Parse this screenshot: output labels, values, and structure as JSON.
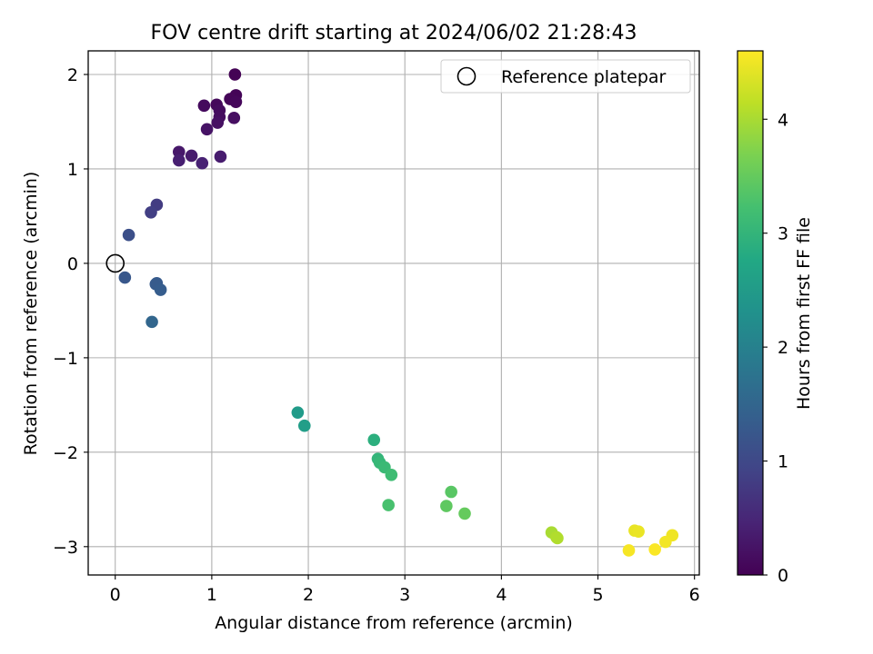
{
  "chart_data": {
    "type": "scatter",
    "title": "FOV centre drift starting at 2024/06/02 21:28:43",
    "xlabel": "Angular distance from reference (arcmin)",
    "ylabel": "Rotation from reference (arcmin)",
    "xlim": [
      -0.28,
      6.05
    ],
    "ylim": [
      -3.3,
      2.25
    ],
    "xticks": [
      0,
      1,
      2,
      3,
      4,
      5,
      6
    ],
    "xtick_labels": [
      "0",
      "1",
      "2",
      "3",
      "4",
      "5",
      "6"
    ],
    "yticks": [
      -3,
      -2,
      -1,
      0,
      1,
      2
    ],
    "ytick_labels": [
      "−3",
      "−2",
      "−1",
      "0",
      "1",
      "2"
    ],
    "grid": true,
    "colormap": "viridis",
    "colorbar": {
      "label": "Hours from first FF file",
      "min": 0,
      "max": 4.6,
      "ticks": [
        0,
        1,
        2,
        3,
        4
      ],
      "tick_labels": [
        "0",
        "1",
        "2",
        "3",
        "4"
      ]
    },
    "legend": {
      "placement": "top-right",
      "entries": [
        {
          "label": "Reference platepar",
          "marker": "open-circle"
        }
      ]
    },
    "reference_point": {
      "x": 0,
      "y": 0
    },
    "series": [
      {
        "points": [
          {
            "x": 1.24,
            "y": 2.0,
            "c": 0.02
          },
          {
            "x": 1.25,
            "y": 1.78,
            "c": 0.04
          },
          {
            "x": 1.19,
            "y": 1.74,
            "c": 0.06
          },
          {
            "x": 1.25,
            "y": 1.71,
            "c": 0.08
          },
          {
            "x": 1.05,
            "y": 1.68,
            "c": 0.1
          },
          {
            "x": 0.92,
            "y": 1.67,
            "c": 0.12
          },
          {
            "x": 1.08,
            "y": 1.62,
            "c": 0.14
          },
          {
            "x": 1.08,
            "y": 1.55,
            "c": 0.16
          },
          {
            "x": 1.23,
            "y": 1.54,
            "c": 0.18
          },
          {
            "x": 1.06,
            "y": 1.49,
            "c": 0.2
          },
          {
            "x": 0.95,
            "y": 1.42,
            "c": 0.24
          },
          {
            "x": 0.66,
            "y": 1.18,
            "c": 0.3
          },
          {
            "x": 0.79,
            "y": 1.14,
            "c": 0.34
          },
          {
            "x": 1.09,
            "y": 1.13,
            "c": 0.36
          },
          {
            "x": 0.66,
            "y": 1.09,
            "c": 0.4
          },
          {
            "x": 0.9,
            "y": 1.06,
            "c": 0.44
          },
          {
            "x": 0.43,
            "y": 0.62,
            "c": 0.8
          },
          {
            "x": 0.37,
            "y": 0.54,
            "c": 0.85
          },
          {
            "x": 0.14,
            "y": 0.3,
            "c": 1.1
          },
          {
            "x": 0.1,
            "y": -0.15,
            "c": 1.25
          },
          {
            "x": 0.43,
            "y": -0.21,
            "c": 1.3
          },
          {
            "x": 0.42,
            "y": -0.22,
            "c": 1.32
          },
          {
            "x": 0.47,
            "y": -0.28,
            "c": 1.35
          },
          {
            "x": 0.38,
            "y": -0.62,
            "c": 1.5
          },
          {
            "x": 1.89,
            "y": -1.58,
            "c": 2.5
          },
          {
            "x": 1.96,
            "y": -1.72,
            "c": 2.55
          },
          {
            "x": 2.68,
            "y": -1.87,
            "c": 2.9
          },
          {
            "x": 2.72,
            "y": -2.07,
            "c": 3.0
          },
          {
            "x": 2.74,
            "y": -2.11,
            "c": 3.05
          },
          {
            "x": 2.79,
            "y": -2.16,
            "c": 3.1
          },
          {
            "x": 2.86,
            "y": -2.24,
            "c": 3.15
          },
          {
            "x": 2.83,
            "y": -2.56,
            "c": 3.25
          },
          {
            "x": 3.48,
            "y": -2.42,
            "c": 3.4
          },
          {
            "x": 3.43,
            "y": -2.57,
            "c": 3.45
          },
          {
            "x": 3.62,
            "y": -2.65,
            "c": 3.5
          },
          {
            "x": 4.52,
            "y": -2.85,
            "c": 4.0
          },
          {
            "x": 4.57,
            "y": -2.9,
            "c": 4.05
          },
          {
            "x": 4.58,
            "y": -2.91,
            "c": 4.06
          },
          {
            "x": 5.38,
            "y": -2.83,
            "c": 4.45
          },
          {
            "x": 5.42,
            "y": -2.84,
            "c": 4.46
          },
          {
            "x": 5.77,
            "y": -2.88,
            "c": 4.5
          },
          {
            "x": 5.7,
            "y": -2.95,
            "c": 4.52
          },
          {
            "x": 5.32,
            "y": -3.04,
            "c": 4.55
          },
          {
            "x": 5.59,
            "y": -3.03,
            "c": 4.58
          }
        ]
      }
    ]
  }
}
